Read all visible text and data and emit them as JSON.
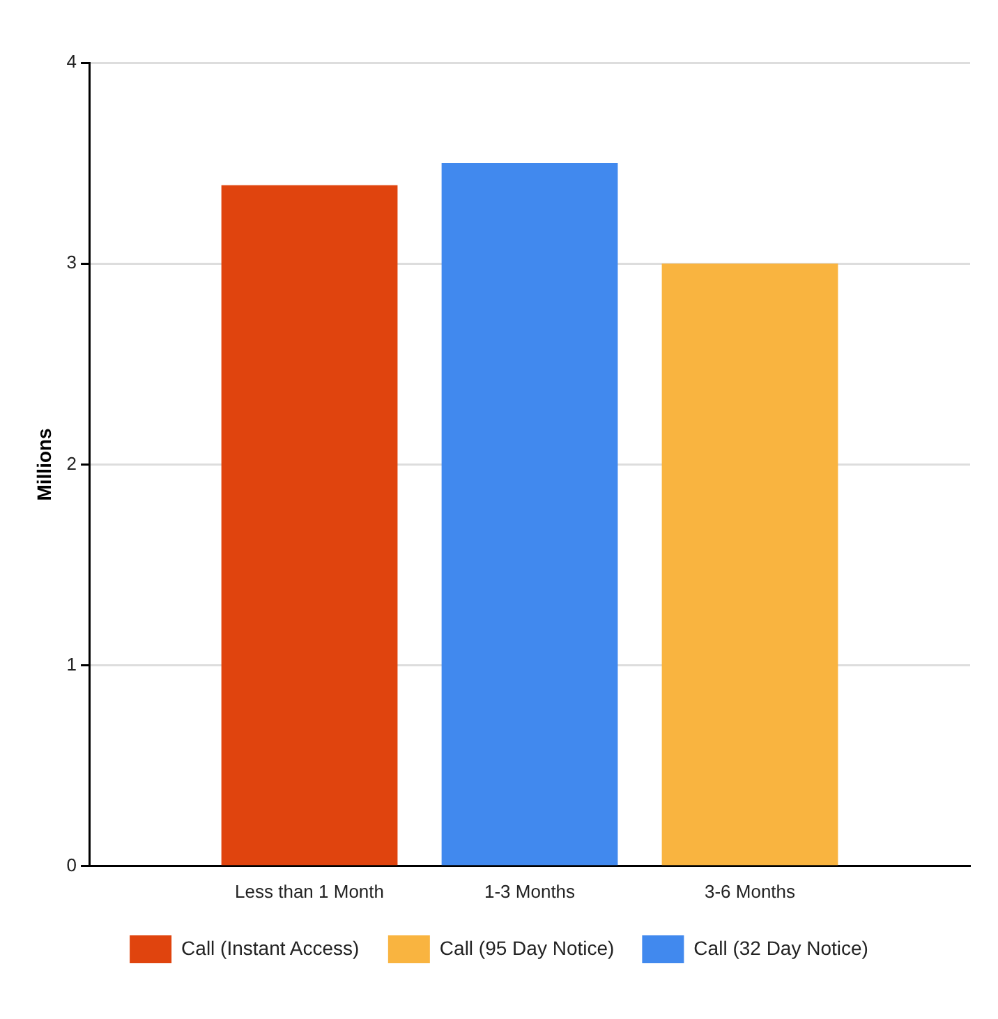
{
  "chart_data": {
    "type": "bar",
    "ylabel": "Millions",
    "categories": [
      "Less than 1 Month",
      "1-3 Months",
      "3-6 Months"
    ],
    "series": [
      {
        "name": "Call (Instant Access)",
        "color": "#e0440e",
        "values": [
          3.39,
          null,
          null
        ]
      },
      {
        "name": "Call (95 Day Notice)",
        "color": "#f9b440",
        "values": [
          null,
          null,
          3.0
        ]
      },
      {
        "name": "Call (32 Day Notice)",
        "color": "#4189ee",
        "values": [
          null,
          3.5,
          null
        ]
      }
    ],
    "ylim": [
      0,
      4
    ],
    "yticks": [
      0,
      1,
      2,
      3,
      4
    ],
    "grid": "y",
    "legend": "bottom"
  }
}
